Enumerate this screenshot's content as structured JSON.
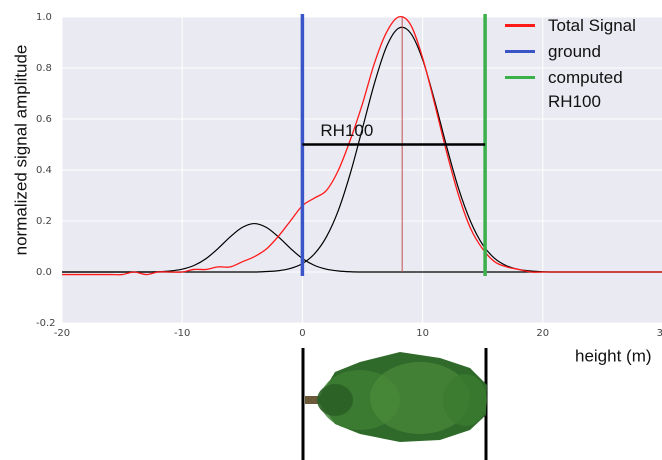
{
  "chart_data": {
    "type": "line",
    "xlabel": "height (m)",
    "ylabel": "normalized signal amplitude",
    "x": [
      -20,
      -19,
      -18,
      -17,
      -16,
      -15,
      -14,
      -13,
      -12,
      -11,
      -10,
      -9,
      -8,
      -7,
      -6,
      -5,
      -4,
      -3,
      -2,
      -1,
      0,
      1,
      2,
      3,
      4,
      5,
      6,
      7,
      8,
      9,
      10,
      11,
      12,
      13,
      14,
      15,
      16,
      17,
      18,
      19,
      20,
      21,
      22,
      23,
      24,
      25,
      26,
      27,
      28,
      29,
      30
    ],
    "series": [
      {
        "name": "Total Signal",
        "color": "#ff1a1a",
        "values": [
          -0.01,
          -0.01,
          -0.01,
          -0.01,
          -0.01,
          -0.01,
          0,
          -0.01,
          0,
          0,
          0,
          0.01,
          0.01,
          0.02,
          0.02,
          0.04,
          0.06,
          0.09,
          0.14,
          0.2,
          0.26,
          0.29,
          0.32,
          0.4,
          0.52,
          0.66,
          0.82,
          0.94,
          1.0,
          0.97,
          0.84,
          0.66,
          0.47,
          0.3,
          0.17,
          0.09,
          0.04,
          0.02,
          0.01,
          0,
          0,
          0,
          0,
          0,
          0,
          0,
          0,
          0,
          0,
          0,
          0
        ]
      },
      {
        "name": "ground",
        "color": "#3a55c8",
        "x_position": 0
      },
      {
        "name": "computed RH100",
        "color": "#3cb04a",
        "x_position": 15.2
      }
    ],
    "fit_curves": [
      {
        "color": "#000000",
        "values": [
          0,
          0,
          0,
          0,
          0,
          0,
          0,
          0,
          0.001,
          0.004,
          0.011,
          0.026,
          0.053,
          0.093,
          0.138,
          0.175,
          0.19,
          0.175,
          0.138,
          0.093,
          0.053,
          0.026,
          0.011,
          0.004,
          0.001,
          0,
          0,
          0,
          0,
          0,
          0,
          0,
          0,
          0,
          0,
          0,
          0,
          0,
          0,
          0,
          0,
          0,
          0,
          0,
          0,
          0,
          0,
          0,
          0,
          0,
          0
        ]
      },
      {
        "color": "#000000",
        "values": [
          0,
          0,
          0,
          0,
          0,
          0,
          0,
          0,
          0,
          0,
          0,
          0,
          0,
          0,
          0,
          0,
          0,
          0.002,
          0.005,
          0.014,
          0.033,
          0.071,
          0.138,
          0.243,
          0.389,
          0.564,
          0.741,
          0.884,
          0.956,
          0.937,
          0.833,
          0.672,
          0.492,
          0.326,
          0.197,
          0.107,
          0.053,
          0.024,
          0.01,
          0.004,
          0.001,
          0,
          0,
          0,
          0,
          0,
          0,
          0,
          0,
          0,
          0
        ]
      }
    ],
    "peak": {
      "x": 8.3,
      "value": 1.0,
      "color": "#c0504d"
    },
    "rh100": {
      "text": "RH100",
      "y": 0.5,
      "x_start": 0,
      "x_end": 15.2
    },
    "xlim": [
      -20,
      30
    ],
    "ylim": [
      -0.2,
      1.0
    ],
    "xticks": [
      -20,
      -10,
      0,
      10,
      20,
      30
    ],
    "yticks": [
      -0.2,
      {
        "value": 0,
        "label": "0.0"
      },
      0.2,
      0.4,
      0.6,
      0.8,
      {
        "value": 1,
        "label": "1.0"
      }
    ],
    "grid": true
  }
}
